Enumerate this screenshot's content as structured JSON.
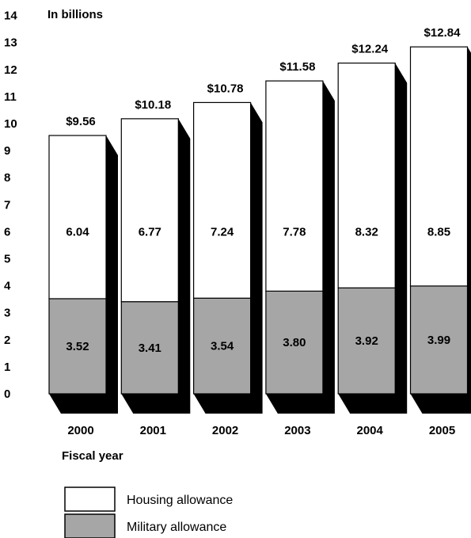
{
  "chart_data": {
    "type": "bar",
    "stacked": true,
    "ylabel": "In billions",
    "xlabel": "Fiscal year",
    "ylim": [
      0,
      14
    ],
    "yticks": [
      "0",
      "1",
      "2",
      "3",
      "4",
      "5",
      "6",
      "7",
      "8",
      "9",
      "10",
      "11",
      "12",
      "13",
      "14"
    ],
    "categories": [
      "2000",
      "2001",
      "2002",
      "2003",
      "2004",
      "2005"
    ],
    "series": [
      {
        "name": "Military allowance",
        "values": [
          3.52,
          3.41,
          3.54,
          3.8,
          3.92,
          3.99
        ],
        "labels": [
          "3.52",
          "3.41",
          "3.54",
          "3.80",
          "3.92",
          "3.99"
        ],
        "color": "#a6a6a6"
      },
      {
        "name": "Housing allowance",
        "values": [
          6.04,
          6.77,
          7.24,
          7.78,
          8.32,
          8.85
        ],
        "labels": [
          "6.04",
          "6.77",
          "7.24",
          "7.78",
          "8.32",
          "8.85"
        ],
        "color": "#ffffff"
      }
    ],
    "totals": [
      9.56,
      10.18,
      10.78,
      11.58,
      12.24,
      12.84
    ],
    "total_labels": [
      "$9.56",
      "$10.18",
      "$10.78",
      "$11.58",
      "$12.24",
      "$12.84"
    ],
    "grid": false,
    "legend_placement": "bottom-left"
  }
}
